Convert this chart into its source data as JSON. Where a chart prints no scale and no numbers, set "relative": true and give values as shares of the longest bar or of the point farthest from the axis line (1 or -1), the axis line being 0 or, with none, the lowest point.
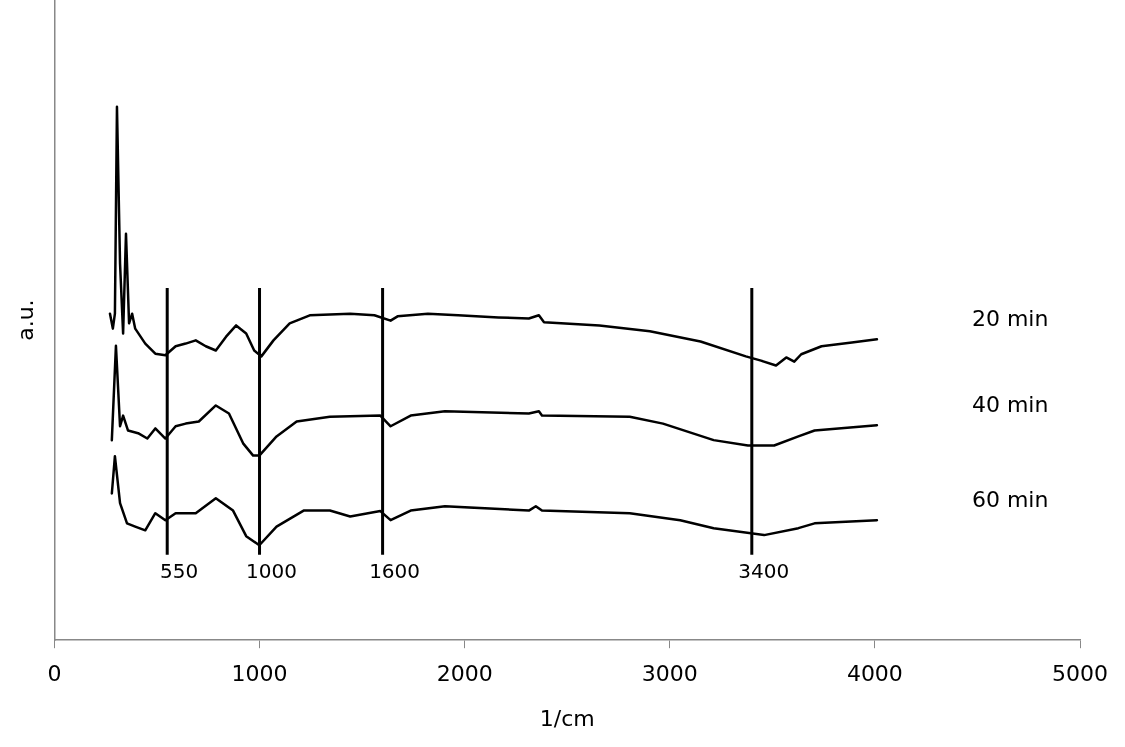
{
  "chart_data": {
    "type": "line",
    "xlabel": "1/cm",
    "ylabel": "a.u.",
    "relative": true,
    "xlim": [
      0,
      5000
    ],
    "xticks": [
      0,
      1000,
      2000,
      3000,
      4000,
      5000
    ],
    "grid": false,
    "legend": false,
    "marker": "none",
    "series": [
      {
        "name": "20 min",
        "color": "#000000",
        "x": [
          271,
          285,
          295,
          305,
          320,
          335,
          349,
          364,
          379,
          394,
          443,
          492,
          541,
          591,
          640,
          689,
          738,
          787,
          837,
          886,
          935,
          974,
          1009,
          1068,
          1147,
          1245,
          1442,
          1560,
          1639,
          1673,
          1821,
          1968,
          2165,
          2313,
          2362,
          2387,
          2657,
          2903,
          3150,
          3371,
          3445,
          3518,
          3568,
          3607,
          3641,
          3740,
          3888,
          4010
        ],
        "values": [
          0.612,
          0.584,
          0.612,
          1.0,
          0.706,
          0.575,
          0.762,
          0.594,
          0.612,
          0.584,
          0.556,
          0.537,
          0.534,
          0.551,
          0.556,
          0.562,
          0.551,
          0.543,
          0.569,
          0.59,
          0.575,
          0.543,
          0.532,
          0.562,
          0.594,
          0.609,
          0.612,
          0.609,
          0.599,
          0.607,
          0.612,
          0.609,
          0.605,
          0.603,
          0.609,
          0.596,
          0.59,
          0.579,
          0.56,
          0.532,
          0.524,
          0.515,
          0.53,
          0.522,
          0.536,
          0.551,
          0.558,
          0.564
        ]
      },
      {
        "name": "40 min",
        "color": "#000000",
        "x": [
          280,
          300,
          320,
          335,
          359,
          408,
          453,
          492,
          541,
          591,
          640,
          704,
          787,
          851,
          920,
          969,
          999,
          1083,
          1181,
          1343,
          1589,
          1639,
          1737,
          1904,
          2313,
          2362,
          2377,
          2805,
          2967,
          3214,
          3381,
          3509,
          3627,
          3706,
          4010
        ],
        "values": [
          0.375,
          0.552,
          0.401,
          0.421,
          0.393,
          0.388,
          0.378,
          0.397,
          0.378,
          0.401,
          0.406,
          0.41,
          0.44,
          0.425,
          0.369,
          0.346,
          0.346,
          0.382,
          0.41,
          0.419,
          0.421,
          0.401,
          0.421,
          0.429,
          0.425,
          0.429,
          0.421,
          0.419,
          0.406,
          0.375,
          0.365,
          0.365,
          0.382,
          0.393,
          0.403
        ]
      },
      {
        "name": "60 min",
        "color": "#000000",
        "x": [
          280,
          295,
          320,
          354,
          394,
          443,
          492,
          541,
          591,
          689,
          787,
          871,
          935,
          999,
          1083,
          1215,
          1343,
          1442,
          1589,
          1639,
          1737,
          1904,
          2313,
          2347,
          2377,
          2805,
          3051,
          3214,
          3460,
          3627,
          3706,
          4010
        ],
        "values": [
          0.275,
          0.345,
          0.257,
          0.219,
          0.213,
          0.206,
          0.238,
          0.225,
          0.238,
          0.238,
          0.266,
          0.243,
          0.195,
          0.178,
          0.213,
          0.243,
          0.243,
          0.232,
          0.242,
          0.225,
          0.243,
          0.251,
          0.243,
          0.251,
          0.243,
          0.238,
          0.225,
          0.21,
          0.197,
          0.21,
          0.219,
          0.225
        ]
      }
    ],
    "ref_lines": [
      {
        "axis": "x",
        "value": 550,
        "label": "550",
        "color": "#000000"
      },
      {
        "axis": "x",
        "value": 1000,
        "label": "1000",
        "color": "#000000"
      },
      {
        "axis": "x",
        "value": 1600,
        "label": "1600",
        "color": "#000000"
      },
      {
        "axis": "x",
        "value": 3400,
        "label": "3400",
        "color": "#000000"
      }
    ]
  }
}
